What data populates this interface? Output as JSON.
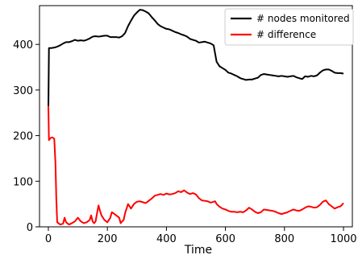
{
  "chart_data": {
    "type": "line",
    "xlabel": "Time",
    "ylabel": "",
    "xlim": [
      -30,
      1030
    ],
    "ylim": [
      0,
      485
    ],
    "xticks": [
      0,
      200,
      400,
      600,
      800,
      1000
    ],
    "yticks": [
      0,
      100,
      200,
      300,
      400
    ],
    "legend_position": "top-right",
    "series": [
      {
        "name": "# nodes monitored",
        "color": "#000000",
        "points": [
          [
            0,
            255
          ],
          [
            2,
            392
          ],
          [
            10,
            392
          ],
          [
            20,
            393
          ],
          [
            30,
            395
          ],
          [
            40,
            398
          ],
          [
            50,
            402
          ],
          [
            60,
            405
          ],
          [
            70,
            405
          ],
          [
            80,
            407
          ],
          [
            90,
            410
          ],
          [
            100,
            408
          ],
          [
            110,
            409
          ],
          [
            120,
            408
          ],
          [
            130,
            410
          ],
          [
            140,
            413
          ],
          [
            150,
            417
          ],
          [
            160,
            418
          ],
          [
            170,
            417
          ],
          [
            180,
            418
          ],
          [
            190,
            419
          ],
          [
            200,
            419
          ],
          [
            210,
            416
          ],
          [
            220,
            416
          ],
          [
            230,
            416
          ],
          [
            240,
            415
          ],
          [
            250,
            418
          ],
          [
            260,
            425
          ],
          [
            270,
            440
          ],
          [
            280,
            452
          ],
          [
            290,
            463
          ],
          [
            300,
            470
          ],
          [
            310,
            476
          ],
          [
            320,
            475
          ],
          [
            330,
            472
          ],
          [
            340,
            468
          ],
          [
            350,
            460
          ],
          [
            360,
            453
          ],
          [
            370,
            445
          ],
          [
            380,
            440
          ],
          [
            390,
            437
          ],
          [
            400,
            434
          ],
          [
            410,
            433
          ],
          [
            420,
            430
          ],
          [
            430,
            427
          ],
          [
            440,
            425
          ],
          [
            450,
            422
          ],
          [
            460,
            420
          ],
          [
            470,
            417
          ],
          [
            480,
            412
          ],
          [
            490,
            410
          ],
          [
            500,
            408
          ],
          [
            510,
            404
          ],
          [
            520,
            405
          ],
          [
            530,
            406
          ],
          [
            540,
            404
          ],
          [
            550,
            402
          ],
          [
            560,
            398
          ],
          [
            565,
            380
          ],
          [
            570,
            362
          ],
          [
            580,
            352
          ],
          [
            590,
            348
          ],
          [
            600,
            344
          ],
          [
            610,
            338
          ],
          [
            620,
            336
          ],
          [
            630,
            333
          ],
          [
            640,
            330
          ],
          [
            650,
            326
          ],
          [
            660,
            324
          ],
          [
            670,
            322
          ],
          [
            680,
            323
          ],
          [
            690,
            323
          ],
          [
            700,
            325
          ],
          [
            710,
            327
          ],
          [
            720,
            333
          ],
          [
            730,
            335
          ],
          [
            740,
            334
          ],
          [
            750,
            333
          ],
          [
            760,
            332
          ],
          [
            770,
            331
          ],
          [
            780,
            330
          ],
          [
            790,
            331
          ],
          [
            800,
            330
          ],
          [
            810,
            329
          ],
          [
            820,
            330
          ],
          [
            830,
            331
          ],
          [
            840,
            328
          ],
          [
            850,
            326
          ],
          [
            860,
            324
          ],
          [
            870,
            330
          ],
          [
            880,
            329
          ],
          [
            890,
            331
          ],
          [
            900,
            330
          ],
          [
            910,
            332
          ],
          [
            920,
            338
          ],
          [
            930,
            343
          ],
          [
            940,
            345
          ],
          [
            950,
            345
          ],
          [
            960,
            342
          ],
          [
            970,
            338
          ],
          [
            980,
            337
          ],
          [
            990,
            337
          ],
          [
            1000,
            336
          ]
        ]
      },
      {
        "name": "# difference",
        "color": "#ff0000",
        "points": [
          [
            0,
            265
          ],
          [
            2,
            190
          ],
          [
            8,
            195
          ],
          [
            14,
            196
          ],
          [
            20,
            193
          ],
          [
            24,
            140
          ],
          [
            27,
            60
          ],
          [
            30,
            10
          ],
          [
            40,
            5
          ],
          [
            50,
            7
          ],
          [
            55,
            20
          ],
          [
            60,
            10
          ],
          [
            70,
            5
          ],
          [
            80,
            8
          ],
          [
            90,
            12
          ],
          [
            100,
            20
          ],
          [
            110,
            12
          ],
          [
            120,
            8
          ],
          [
            130,
            10
          ],
          [
            140,
            15
          ],
          [
            145,
            25
          ],
          [
            150,
            12
          ],
          [
            155,
            8
          ],
          [
            160,
            12
          ],
          [
            165,
            30
          ],
          [
            170,
            47
          ],
          [
            175,
            35
          ],
          [
            180,
            25
          ],
          [
            190,
            15
          ],
          [
            200,
            10
          ],
          [
            210,
            20
          ],
          [
            215,
            32
          ],
          [
            220,
            30
          ],
          [
            230,
            25
          ],
          [
            240,
            20
          ],
          [
            245,
            8
          ],
          [
            250,
            12
          ],
          [
            255,
            15
          ],
          [
            260,
            30
          ],
          [
            270,
            50
          ],
          [
            280,
            40
          ],
          [
            290,
            50
          ],
          [
            300,
            55
          ],
          [
            310,
            56
          ],
          [
            320,
            54
          ],
          [
            330,
            52
          ],
          [
            340,
            57
          ],
          [
            350,
            62
          ],
          [
            360,
            68
          ],
          [
            370,
            70
          ],
          [
            380,
            72
          ],
          [
            390,
            70
          ],
          [
            400,
            73
          ],
          [
            410,
            71
          ],
          [
            420,
            72
          ],
          [
            430,
            74
          ],
          [
            440,
            78
          ],
          [
            450,
            76
          ],
          [
            460,
            80
          ],
          [
            470,
            75
          ],
          [
            480,
            72
          ],
          [
            490,
            74
          ],
          [
            500,
            71
          ],
          [
            510,
            63
          ],
          [
            520,
            58
          ],
          [
            530,
            57
          ],
          [
            540,
            56
          ],
          [
            550,
            53
          ],
          [
            560,
            55
          ],
          [
            565,
            56
          ],
          [
            570,
            50
          ],
          [
            580,
            44
          ],
          [
            590,
            40
          ],
          [
            600,
            38
          ],
          [
            610,
            35
          ],
          [
            620,
            33
          ],
          [
            630,
            33
          ],
          [
            640,
            32
          ],
          [
            650,
            33
          ],
          [
            660,
            32
          ],
          [
            670,
            36
          ],
          [
            680,
            42
          ],
          [
            690,
            38
          ],
          [
            700,
            33
          ],
          [
            710,
            30
          ],
          [
            720,
            32
          ],
          [
            730,
            38
          ],
          [
            740,
            37
          ],
          [
            750,
            36
          ],
          [
            760,
            35
          ],
          [
            770,
            33
          ],
          [
            780,
            30
          ],
          [
            790,
            28
          ],
          [
            800,
            30
          ],
          [
            810,
            32
          ],
          [
            820,
            35
          ],
          [
            830,
            38
          ],
          [
            840,
            36
          ],
          [
            850,
            35
          ],
          [
            860,
            38
          ],
          [
            870,
            42
          ],
          [
            880,
            45
          ],
          [
            890,
            44
          ],
          [
            900,
            42
          ],
          [
            910,
            43
          ],
          [
            920,
            48
          ],
          [
            930,
            55
          ],
          [
            940,
            58
          ],
          [
            950,
            50
          ],
          [
            960,
            45
          ],
          [
            970,
            40
          ],
          [
            980,
            43
          ],
          [
            990,
            45
          ],
          [
            1000,
            52
          ]
        ]
      }
    ]
  }
}
